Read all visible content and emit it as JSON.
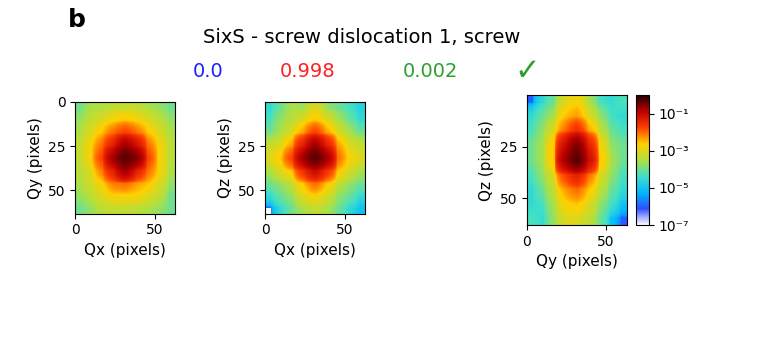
{
  "panel_label": "b",
  "title": "SixS - screw dislocation 1, screw",
  "scores": [
    {
      "value": 0.0,
      "color": "#1f1fff"
    },
    {
      "value": 0.998,
      "color": "#ff2020"
    },
    {
      "value": 0.002,
      "color": "#2ca02c"
    }
  ],
  "mark": {
    "text": "✓",
    "color": "#2ca02c"
  },
  "chart_data": [
    {
      "type": "heatmap",
      "xlabel": "Qx (pixels)",
      "ylabel": "Qy (pixels)",
      "xlim": [
        0,
        63
      ],
      "ylim": [
        63,
        0
      ],
      "xticks": [
        0,
        50
      ],
      "yticks": [
        0,
        25,
        50
      ],
      "log": true,
      "cells": [
        [
          0.0001,
          0.0003,
          0.0003,
          0.0005,
          0.0005,
          0.0005,
          0.0003,
          0.0002,
          0.0001
        ],
        [
          0.0002,
          0.0005,
          0.001,
          0.002,
          0.003,
          0.002,
          0.001,
          0.0005,
          0.0002
        ],
        [
          0.0003,
          0.001,
          0.003,
          0.01,
          0.02,
          0.01,
          0.003,
          0.001,
          0.0003
        ],
        [
          0.0005,
          0.002,
          0.01,
          0.05,
          0.2,
          0.08,
          0.01,
          0.002,
          0.0004
        ],
        [
          0.0005,
          0.002,
          0.02,
          0.2,
          0.5,
          0.3,
          0.02,
          0.002,
          0.0004
        ],
        [
          0.0004,
          0.001,
          0.008,
          0.05,
          0.2,
          0.05,
          0.01,
          0.002,
          0.0003
        ],
        [
          0.0003,
          0.0008,
          0.002,
          0.008,
          0.01,
          0.005,
          0.003,
          0.001,
          0.0002
        ],
        [
          0.0002,
          0.0004,
          0.001,
          0.002,
          0.002,
          0.002,
          0.001,
          0.0005,
          0.0001
        ],
        [
          0.0001,
          0.0002,
          0.0004,
          0.0005,
          0.0005,
          0.0004,
          0.0003,
          0.0002,
          0.0001
        ]
      ]
    },
    {
      "type": "heatmap",
      "xlabel": "Qx (pixels)",
      "ylabel": "Qz (pixels)",
      "xlim": [
        0,
        63
      ],
      "ylim": [
        63,
        0
      ],
      "xticks": [
        0,
        50
      ],
      "yticks": [
        25,
        50
      ],
      "log": true,
      "cells": [
        [
          3e-05,
          0.0001,
          0.0003,
          0.0002,
          0.001,
          0.0002,
          0.0001,
          5e-05,
          2e-05
        ],
        [
          5e-05,
          0.0002,
          0.0004,
          0.001,
          0.003,
          0.001,
          0.0003,
          0.0001,
          3e-05
        ],
        [
          0.0001,
          0.0003,
          0.001,
          0.005,
          0.02,
          0.005,
          0.001,
          0.0003,
          0.0001
        ],
        [
          0.0005,
          0.001,
          0.005,
          0.05,
          0.2,
          0.05,
          0.005,
          0.001,
          0.0005
        ],
        [
          0.001,
          0.003,
          0.02,
          0.2,
          0.5,
          0.2,
          0.01,
          0.002,
          0.001
        ],
        [
          0.0003,
          0.001,
          0.003,
          0.03,
          0.1,
          0.03,
          0.003,
          0.0008,
          0.0003
        ],
        [
          0.0001,
          0.0002,
          0.0005,
          0.003,
          0.01,
          0.003,
          0.0005,
          0.0002,
          0.0001
        ],
        [
          3e-05,
          0.0001,
          0.0002,
          0.001,
          0.002,
          0.0008,
          0.0002,
          0.0001,
          3e-05
        ],
        [
          1e-07,
          3e-05,
          0.0001,
          0.0003,
          0.0005,
          0.0003,
          0.0001,
          3e-05,
          1e-05
        ]
      ]
    },
    {
      "type": "heatmap",
      "xlabel": "Qy (pixels)",
      "ylabel": "Qz (pixels)",
      "xlim": [
        0,
        63
      ],
      "ylim": [
        63,
        0
      ],
      "xticks": [
        0,
        50
      ],
      "yticks": [
        25,
        50
      ],
      "log": true,
      "cells": [
        [
          1e-06,
          3e-05,
          0.0001,
          0.001,
          0.002,
          0.0003,
          5e-05,
          3e-05,
          5e-05
        ],
        [
          3e-05,
          0.0001,
          0.0003,
          0.003,
          0.005,
          0.001,
          0.0002,
          5e-05,
          3e-05
        ],
        [
          5e-05,
          0.0002,
          0.001,
          0.01,
          0.03,
          0.005,
          0.0005,
          0.0001,
          5e-05
        ],
        [
          0.0001,
          0.0003,
          0.003,
          0.1,
          0.3,
          0.05,
          0.002,
          0.0002,
          0.0001
        ],
        [
          0.0001,
          0.0003,
          0.003,
          0.2,
          0.5,
          0.1,
          0.003,
          0.0003,
          0.0001
        ],
        [
          5e-05,
          0.0002,
          0.001,
          0.02,
          0.05,
          0.01,
          0.001,
          0.0002,
          5e-05
        ],
        [
          3e-05,
          0.0001,
          0.0005,
          0.005,
          0.01,
          0.003,
          0.0005,
          0.0001,
          3e-05
        ],
        [
          3e-05,
          5e-05,
          0.0003,
          0.002,
          0.003,
          0.001,
          0.0002,
          5e-05,
          1e-05
        ],
        [
          5e-05,
          3e-05,
          0.0002,
          0.001,
          0.001,
          0.0005,
          0.0001,
          1e-05,
          1e-06
        ]
      ],
      "colorbar": {
        "range": [
          1e-07,
          1
        ],
        "ticks": [
          {
            "value": 0.1,
            "label": "10⁻¹"
          },
          {
            "value": 0.001,
            "label": "10⁻³"
          },
          {
            "value": 1e-05,
            "label": "10⁻⁵"
          },
          {
            "value": 1e-07,
            "label": "10⁻⁷"
          }
        ]
      }
    }
  ]
}
